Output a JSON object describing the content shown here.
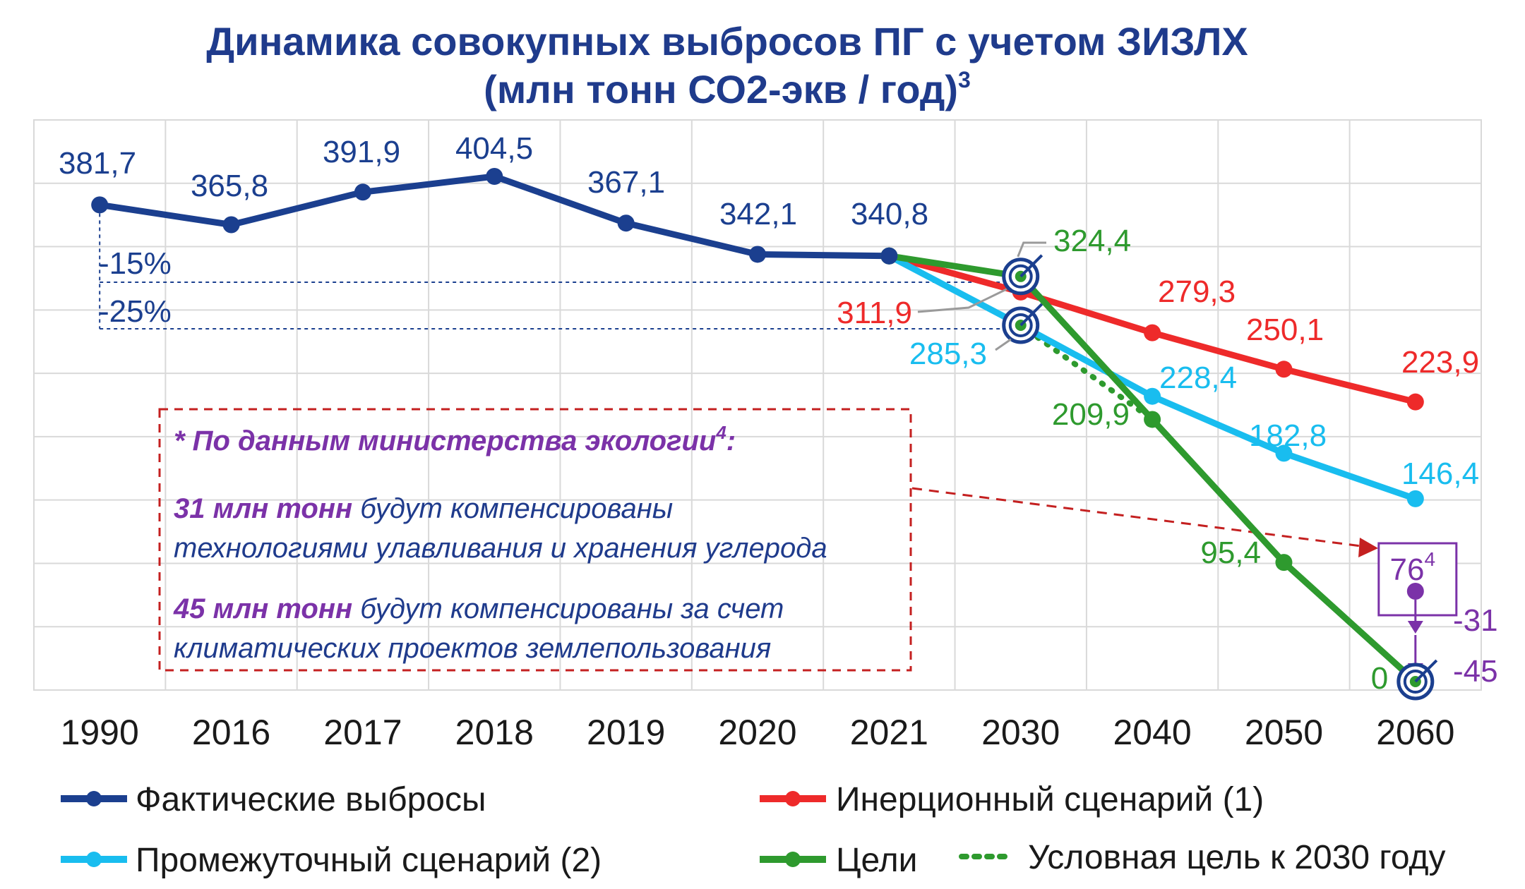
{
  "chart_data": {
    "type": "line",
    "title": "Динамика совокупных выбросов ПГ с учетом ЗИЗЛХ",
    "subtitle": "(млн тонн СО2-экв / год)",
    "subtitle_sup": "3",
    "categories": [
      "1990",
      "2016",
      "2017",
      "2018",
      "2019",
      "2020",
      "2021",
      "2030",
      "2040",
      "2050",
      "2060"
    ],
    "ylim": [
      0,
      430
    ],
    "grid": true,
    "legend_position": "bottom",
    "series": [
      {
        "name": "Фактические выбросы",
        "color": "#1B3F8F",
        "style": "solid",
        "x": [
          "1990",
          "2016",
          "2017",
          "2018",
          "2019",
          "2020",
          "2021"
        ],
        "values": [
          381.7,
          365.8,
          391.9,
          404.5,
          367.1,
          342.1,
          340.8
        ],
        "labels": [
          "381,7",
          "365,8",
          "391,9",
          "404,5",
          "367,1",
          "342,1",
          "340,8"
        ]
      },
      {
        "name": "Инерционный сценарий (1)",
        "color": "#EE2A2A",
        "style": "solid",
        "x": [
          "2021",
          "2030",
          "2040",
          "2050",
          "2060"
        ],
        "values": [
          340.8,
          311.9,
          279.3,
          250.1,
          223.9
        ],
        "labels": [
          "",
          "311,9",
          "279,3",
          "250,1",
          "223,9"
        ]
      },
      {
        "name": "Промежуточный сценарий (2)",
        "color": "#19BDEF",
        "style": "solid",
        "x": [
          "2021",
          "2030",
          "2040",
          "2050",
          "2060"
        ],
        "values": [
          340.8,
          285.3,
          228.4,
          182.8,
          146.4
        ],
        "labels": [
          "",
          "285,3",
          "228,4",
          "182,8",
          "146,4"
        ]
      },
      {
        "name": "Цели",
        "color": "#2E9A2E",
        "style": "solid",
        "x": [
          "2021",
          "2030",
          "2040",
          "2050",
          "2060"
        ],
        "values": [
          340.8,
          324.4,
          209.9,
          95.4,
          0
        ],
        "labels": [
          "",
          "324,4",
          "209,9",
          "95,4",
          "0"
        ]
      },
      {
        "name": "Условная цель к 2030 году",
        "color": "#2E9A2E",
        "style": "dotted",
        "x": [
          "2021",
          "2030",
          "2040"
        ],
        "values": [
          340.8,
          285.3,
          209.9
        ],
        "labels": []
      }
    ],
    "annotations": {
      "pct_15": "-15%",
      "pct_25": "-25%",
      "box_value": "76",
      "box_sup": "4",
      "box_value_num": 76,
      "minus_31": "-31",
      "minus_45": "-45"
    },
    "note": {
      "header": "* По данным министерства экологии",
      "header_sup": "4",
      "header_end": ":",
      "line1_bold": "31 млн тонн",
      "line1_rest": " будут компенсированы",
      "line2": "технологиями улавливания и хранения углерода",
      "line3_bold": "45 млн тонн",
      "line3_rest": " будут компенсированы за счет",
      "line4": "климатических проектов землепользования"
    },
    "colors": {
      "actual": "#1B3F8F",
      "inertial": "#EE2A2A",
      "intermediate": "#19BDEF",
      "goals": "#2E9A2E",
      "purple": "#7B32A8",
      "title": "#1F3B8C",
      "note_border": "#C42020"
    }
  }
}
